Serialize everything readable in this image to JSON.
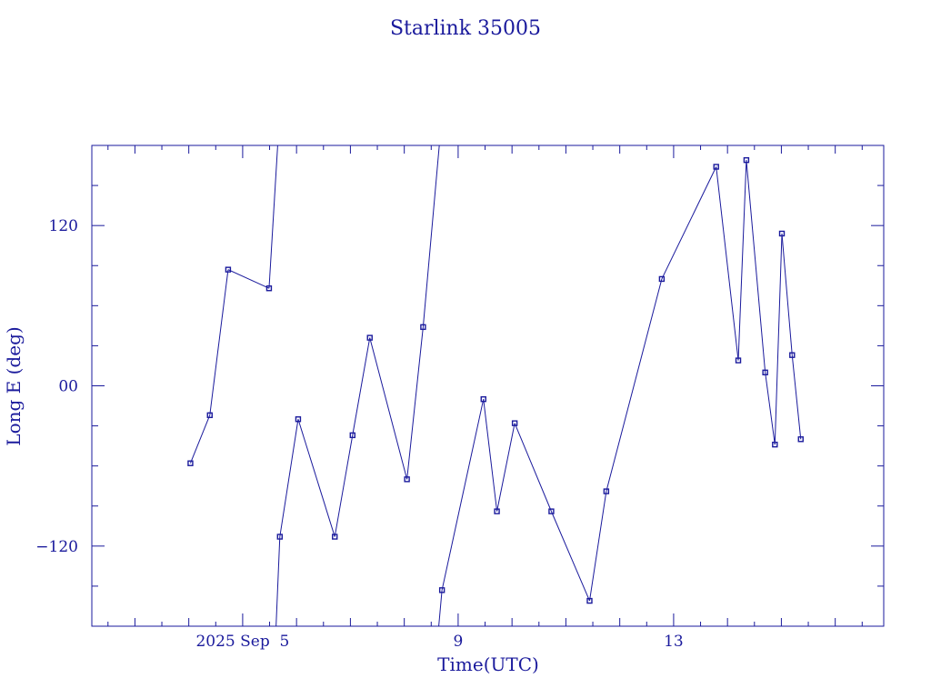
{
  "chart_data": {
    "type": "line",
    "title": "Starlink 35005",
    "xlabel": "Time(UTC)",
    "ylabel": "Long E (deg)",
    "xlim": [
      1.2,
      15.9
    ],
    "ylim": [
      -180,
      180
    ],
    "x_ticks": [
      {
        "value": 4.0,
        "label": "2025 Sep  5"
      },
      {
        "value": 8.0,
        "label": "9"
      },
      {
        "value": 12.0,
        "label": "13"
      }
    ],
    "y_ticks": [
      {
        "value": 120,
        "label": "120"
      },
      {
        "value": 0,
        "label": "00"
      },
      {
        "value": -120,
        "label": "−120"
      }
    ],
    "grid": false,
    "color": "#1a1a9c",
    "series": [
      {
        "points": [
          {
            "x": 3.03,
            "y": -58
          },
          {
            "x": 3.39,
            "y": -22
          },
          {
            "x": 3.73,
            "y": 87
          },
          {
            "x": 4.49,
            "y": 73
          },
          {
            "x": 4.65,
            "y": 180,
            "marker": false
          },
          {
            "x": 4.62,
            "y": -180,
            "marker": false
          },
          {
            "x": 4.69,
            "y": -113
          },
          {
            "x": 5.03,
            "y": -25
          },
          {
            "x": 5.71,
            "y": -113
          },
          {
            "x": 6.04,
            "y": -37
          },
          {
            "x": 6.36,
            "y": 36
          },
          {
            "x": 7.05,
            "y": -70
          },
          {
            "x": 7.35,
            "y": 44
          },
          {
            "x": 7.65,
            "y": 180,
            "marker": false
          },
          {
            "x": 7.64,
            "y": -180,
            "marker": false
          },
          {
            "x": 7.7,
            "y": -153
          },
          {
            "x": 8.47,
            "y": -10
          },
          {
            "x": 8.72,
            "y": -94
          },
          {
            "x": 9.05,
            "y": -28
          },
          {
            "x": 9.73,
            "y": -94
          },
          {
            "x": 10.44,
            "y": -161
          },
          {
            "x": 10.75,
            "y": -79
          },
          {
            "x": 11.78,
            "y": 80
          },
          {
            "x": 12.79,
            "y": 164
          },
          {
            "x": 13.2,
            "y": 19
          },
          {
            "x": 13.35,
            "y": 169
          },
          {
            "x": 13.7,
            "y": 10
          },
          {
            "x": 13.88,
            "y": -44
          },
          {
            "x": 14.01,
            "y": 114
          },
          {
            "x": 14.2,
            "y": 23
          },
          {
            "x": 14.36,
            "y": -40
          }
        ]
      }
    ]
  }
}
